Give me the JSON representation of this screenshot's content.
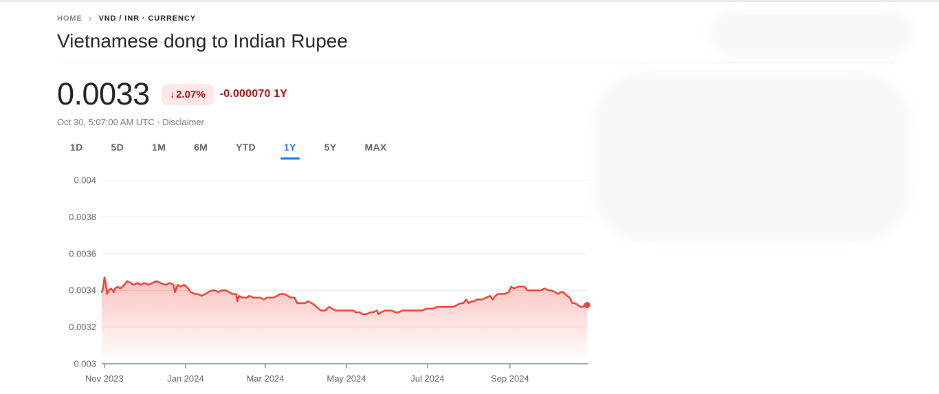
{
  "page": {
    "breadcrumb": {
      "home": "HOME",
      "separator": "›",
      "current": "VND / INR · CURRENCY"
    },
    "title": "Vietnamese dong to Indian Rupee"
  },
  "quote": {
    "price": "0.0033",
    "down_arrow": "↓",
    "change_percent": "2.07%",
    "change_absolute": "-0.000070 1Y",
    "timestamp": "Oct 30, 5:07:00 AM UTC",
    "separator": "·",
    "disclaimer_label": "Disclaimer"
  },
  "tabs": {
    "active": "1Y",
    "items": [
      {
        "label": "1D"
      },
      {
        "label": "5D"
      },
      {
        "label": "1M"
      },
      {
        "label": "6M"
      },
      {
        "label": "YTD"
      },
      {
        "label": "1Y"
      },
      {
        "label": "5Y"
      },
      {
        "label": "MAX"
      }
    ]
  },
  "colors": {
    "line_red": "#ea4335",
    "down_text_red": "#a50e0e",
    "badge_background": "#fce8e6",
    "active_tab_blue": "#1a73e8",
    "primary_text": "#202124",
    "secondary_text": "#5f6368",
    "muted_text": "#70757a",
    "gridline": "#e8eaed",
    "axis": "#80868b"
  },
  "chart_data": {
    "type": "area",
    "title": "Vietnamese dong to Indian Rupee, 1 year",
    "xlabel": "",
    "ylabel": "",
    "ylim": [
      0.003,
      0.004
    ],
    "grid": true,
    "legend": "none",
    "x_start_date": "2023-10-30",
    "x_end_date": "2024-10-30",
    "total_days": 366,
    "x_unit": "days_from_start",
    "yticks": [
      {
        "value": 0.003,
        "label": "0.003"
      },
      {
        "value": 0.0032,
        "label": "0.0032"
      },
      {
        "value": 0.0034,
        "label": "0.0034"
      },
      {
        "value": 0.0036,
        "label": "0.0036"
      },
      {
        "value": 0.0038,
        "label": "0.0038"
      },
      {
        "value": 0.004,
        "label": "0.004"
      }
    ],
    "xticks": [
      {
        "day": 2,
        "label": "Nov 2023"
      },
      {
        "day": 63,
        "label": "Jan 2024"
      },
      {
        "day": 123,
        "label": "Mar 2024"
      },
      {
        "day": 184,
        "label": "May 2024"
      },
      {
        "day": 245,
        "label": "Jul 2024"
      },
      {
        "day": 307,
        "label": "Sep 2024"
      }
    ],
    "points": [
      [
        0,
        0.00339
      ],
      [
        1,
        0.00341
      ],
      [
        2,
        0.00347
      ],
      [
        3,
        0.00344
      ],
      [
        4,
        0.00338
      ],
      [
        5,
        0.0034
      ],
      [
        7,
        0.00341
      ],
      [
        9,
        0.00339
      ],
      [
        10,
        0.00341
      ],
      [
        12,
        0.00342
      ],
      [
        14,
        0.00341
      ],
      [
        17,
        0.00343
      ],
      [
        19,
        0.00345
      ],
      [
        22,
        0.00344
      ],
      [
        24,
        0.00343
      ],
      [
        27,
        0.00344
      ],
      [
        29,
        0.00343
      ],
      [
        32,
        0.00344
      ],
      [
        35,
        0.00343
      ],
      [
        38,
        0.00344
      ],
      [
        41,
        0.00345
      ],
      [
        44,
        0.00344
      ],
      [
        48,
        0.00343
      ],
      [
        51,
        0.00344
      ],
      [
        54,
        0.00343
      ],
      [
        55,
        0.00339
      ],
      [
        57,
        0.00343
      ],
      [
        59,
        0.00342
      ],
      [
        62,
        0.00343
      ],
      [
        65,
        0.00341
      ],
      [
        67,
        0.00339
      ],
      [
        70,
        0.00338
      ],
      [
        72,
        0.00338
      ],
      [
        75,
        0.00337
      ],
      [
        78,
        0.00338
      ],
      [
        80,
        0.00339
      ],
      [
        83,
        0.0034
      ],
      [
        85,
        0.0034
      ],
      [
        88,
        0.00339
      ],
      [
        90,
        0.0034
      ],
      [
        93,
        0.0034
      ],
      [
        96,
        0.00339
      ],
      [
        98,
        0.00338
      ],
      [
        101,
        0.00338
      ],
      [
        102,
        0.00334
      ],
      [
        103,
        0.00337
      ],
      [
        106,
        0.00336
      ],
      [
        109,
        0.00336
      ],
      [
        111,
        0.00337
      ],
      [
        114,
        0.00336
      ],
      [
        116,
        0.00336
      ],
      [
        119,
        0.00336
      ],
      [
        122,
        0.00335
      ],
      [
        124,
        0.00336
      ],
      [
        127,
        0.00336
      ],
      [
        129,
        0.00336
      ],
      [
        132,
        0.00337
      ],
      [
        134,
        0.00338
      ],
      [
        137,
        0.00338
      ],
      [
        140,
        0.00337
      ],
      [
        142,
        0.00336
      ],
      [
        145,
        0.00336
      ],
      [
        147,
        0.00333
      ],
      [
        150,
        0.00333
      ],
      [
        153,
        0.00333
      ],
      [
        155,
        0.00334
      ],
      [
        158,
        0.00333
      ],
      [
        160,
        0.00332
      ],
      [
        163,
        0.0033
      ],
      [
        165,
        0.00329
      ],
      [
        168,
        0.00329
      ],
      [
        171,
        0.00331
      ],
      [
        173,
        0.0033
      ],
      [
        176,
        0.00329
      ],
      [
        178,
        0.00329
      ],
      [
        181,
        0.00329
      ],
      [
        184,
        0.00329
      ],
      [
        186,
        0.00329
      ],
      [
        189,
        0.00329
      ],
      [
        191,
        0.00328
      ],
      [
        194,
        0.00328
      ],
      [
        196,
        0.00327
      ],
      [
        199,
        0.00327
      ],
      [
        202,
        0.00328
      ],
      [
        204,
        0.00328
      ],
      [
        207,
        0.00329
      ],
      [
        208,
        0.00327
      ],
      [
        210,
        0.00328
      ],
      [
        213,
        0.00329
      ],
      [
        216,
        0.00329
      ],
      [
        218,
        0.00329
      ],
      [
        221,
        0.00328
      ],
      [
        223,
        0.00328
      ],
      [
        226,
        0.00329
      ],
      [
        229,
        0.00329
      ],
      [
        231,
        0.00329
      ],
      [
        234,
        0.00329
      ],
      [
        236,
        0.00329
      ],
      [
        239,
        0.00329
      ],
      [
        241,
        0.00329
      ],
      [
        244,
        0.0033
      ],
      [
        247,
        0.0033
      ],
      [
        249,
        0.0033
      ],
      [
        252,
        0.00331
      ],
      [
        254,
        0.00331
      ],
      [
        257,
        0.00331
      ],
      [
        260,
        0.00331
      ],
      [
        262,
        0.00331
      ],
      [
        265,
        0.00331
      ],
      [
        267,
        0.00332
      ],
      [
        270,
        0.00333
      ],
      [
        272,
        0.00333
      ],
      [
        274,
        0.00335
      ],
      [
        276,
        0.00333
      ],
      [
        278,
        0.00334
      ],
      [
        280,
        0.00334
      ],
      [
        282,
        0.00335
      ],
      [
        284,
        0.00335
      ],
      [
        286,
        0.00335
      ],
      [
        289,
        0.00336
      ],
      [
        292,
        0.00337
      ],
      [
        294,
        0.00335
      ],
      [
        296,
        0.00337
      ],
      [
        298,
        0.00338
      ],
      [
        301,
        0.00338
      ],
      [
        303,
        0.00338
      ],
      [
        306,
        0.00339
      ],
      [
        308,
        0.00342
      ],
      [
        310,
        0.00341
      ],
      [
        313,
        0.00342
      ],
      [
        315,
        0.00342
      ],
      [
        318,
        0.00342
      ],
      [
        320,
        0.0034
      ],
      [
        323,
        0.0034
      ],
      [
        325,
        0.0034
      ],
      [
        328,
        0.0034
      ],
      [
        330,
        0.0034
      ],
      [
        333,
        0.00341
      ],
      [
        336,
        0.0034
      ],
      [
        338,
        0.0034
      ],
      [
        341,
        0.00339
      ],
      [
        343,
        0.00338
      ],
      [
        345,
        0.00339
      ],
      [
        347,
        0.00339
      ],
      [
        350,
        0.00337
      ],
      [
        352,
        0.00336
      ],
      [
        354,
        0.00333
      ],
      [
        356,
        0.00333
      ],
      [
        358,
        0.00332
      ],
      [
        360,
        0.00331
      ],
      [
        362,
        0.00331
      ],
      [
        363,
        0.00332
      ],
      [
        365,
        0.00332
      ]
    ],
    "last_point": {
      "date": "2024-10-30",
      "value": 0.00332,
      "marker_dot": true
    },
    "line_color": "#ea4335",
    "fill_gradient_top": "rgba(234,67,53,0.33)",
    "fill_gradient_bottom": "rgba(234,67,53,0)"
  }
}
